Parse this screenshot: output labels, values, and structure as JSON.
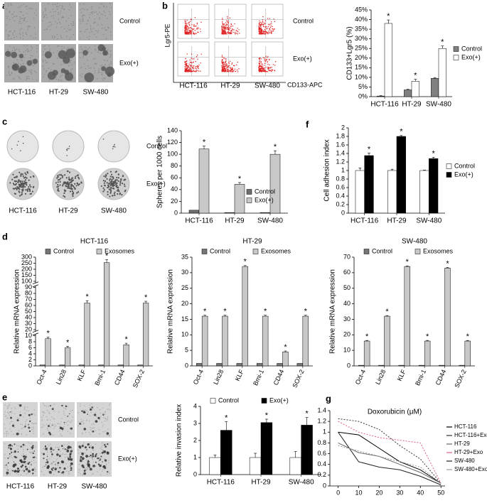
{
  "figure": {
    "a": {
      "letter": "a",
      "rows": [
        "Control",
        "Exo(+)"
      ],
      "columns": [
        "HCT-116",
        "HT-29",
        "SW-480"
      ]
    },
    "b": {
      "letter": "b",
      "rows": [
        "Control",
        "Exo(+)"
      ],
      "columns": [
        "HCT-116",
        "HT-29",
        "SW-480"
      ],
      "y_label": "Lgr5-PE",
      "x_label": "CD133-APC"
    },
    "c": {
      "letter": "c",
      "rows": [
        "Control",
        "Exo(+)"
      ],
      "columns": [
        "HCT-116",
        "HT-29",
        "SW-480"
      ]
    },
    "d": {
      "letter": "d"
    },
    "e": {
      "letter": "e",
      "rows": [
        "Control",
        "Exo(+)"
      ],
      "columns": [
        "HCT-116",
        "HT-29",
        "SW-480"
      ]
    },
    "f": {
      "letter": "f"
    },
    "g": {
      "letter": "g"
    }
  },
  "chart_data": [
    {
      "type": "bar",
      "ylabel": "CD133+Lgr5 (%)",
      "categories": [
        "HCT-116",
        "HT-29",
        "SW-480"
      ],
      "series": [
        {
          "name": "Control",
          "color": "#808080",
          "values": [
            0.3,
            3.5,
            9.5
          ],
          "errors": [
            0.2,
            0.3,
            0.4
          ]
        },
        {
          "name": "Exo(+)",
          "color": "#ffffff",
          "values": [
            38,
            8,
            25
          ],
          "errors": [
            1.8,
            1,
            1.3
          ],
          "stars": [
            "*",
            "*",
            "*"
          ]
        }
      ],
      "ylim": [
        0,
        45
      ],
      "yticks": [
        {
          "value": 0,
          "label": "0%"
        },
        {
          "value": 5,
          "label": "5%"
        },
        {
          "value": 10,
          "label": "10%"
        },
        {
          "value": 15,
          "label": "15%"
        },
        {
          "value": 20,
          "label": "20%"
        },
        {
          "value": 25,
          "label": "25%"
        },
        {
          "value": 30,
          "label": "30%"
        },
        {
          "value": 35,
          "label": "35%"
        },
        {
          "value": 40,
          "label": "40%"
        },
        {
          "value": 45,
          "label": "45%"
        }
      ],
      "legend": "right"
    },
    {
      "type": "bar",
      "ylabel": "Spheres per 1000 cells",
      "categories": [
        "HCT-116",
        "HT-29",
        "SW-480"
      ],
      "series": [
        {
          "name": "Control",
          "color": "#6e6e6e",
          "values": [
            5,
            1,
            1
          ]
        },
        {
          "name": "Exo(+)",
          "color": "#c8c8c8",
          "values": [
            109,
            49,
            100
          ],
          "errors": [
            5,
            3,
            6
          ],
          "stars": [
            "*",
            "*",
            "*"
          ]
        }
      ],
      "ylim": [
        0,
        140
      ],
      "yticks": [
        0,
        20,
        40,
        60,
        80,
        100,
        120,
        140
      ],
      "legend": "lower right"
    },
    {
      "type": "bar",
      "ylabel": "Cell adhesion index",
      "categories": [
        "HCT-116",
        "HT-29",
        "SW-480"
      ],
      "series": [
        {
          "name": "Control",
          "color": "#ffffff",
          "values": [
            1,
            1,
            1
          ],
          "errors": [
            0.06,
            0.03,
            0.01
          ]
        },
        {
          "name": "Exo(+)",
          "color": "#000000",
          "values": [
            1.35,
            1.8,
            1.28
          ],
          "errors": [
            0.06,
            0.02,
            0.03
          ],
          "stars": [
            "*",
            "*",
            "*"
          ]
        }
      ],
      "ylim": [
        0,
        2
      ],
      "yticks": [
        0,
        0.2,
        0.4,
        0.6,
        0.8,
        1,
        1.2,
        1.4,
        1.6,
        1.8,
        2
      ],
      "legend": "right"
    },
    {
      "type": "bar",
      "title": "HCT-116",
      "ylabel": "Relative mRNA expression",
      "categories": [
        "Oct-4",
        "Lin28",
        "KLF",
        "Bmi-1",
        "CD44",
        "SOX-2"
      ],
      "series": [
        {
          "name": "Control",
          "color": "#777777",
          "values": [
            0.3,
            0.3,
            0.3,
            0.3,
            0.3,
            0.3
          ]
        },
        {
          "name": "Exosomes",
          "color": "#c8c8c8",
          "values": [
            9,
            6,
            64,
            255,
            7,
            64
          ],
          "errors": [
            0.5,
            0.5,
            4,
            25,
            0.5,
            3
          ],
          "stars": [
            "*",
            "*",
            "*",
            "*",
            "*",
            "*"
          ]
        }
      ],
      "ylim": [
        0,
        300
      ],
      "yticks": [
        0,
        2,
        4,
        6,
        8,
        10,
        20,
        30,
        40,
        50,
        60,
        70,
        80,
        90,
        100,
        150,
        200,
        250,
        300
      ],
      "y_segments": [
        [
          0,
          10
        ],
        [
          20,
          90
        ],
        [
          100,
          300
        ]
      ],
      "legend": "upper center"
    },
    {
      "type": "bar",
      "title": "HT-29",
      "ylabel": "Relative mRNA expression",
      "categories": [
        "Oct-4",
        "Lin28",
        "KLF",
        "Bmi-1",
        "CD44",
        "SOX-2"
      ],
      "series": [
        {
          "name": "Control",
          "color": "#777777",
          "values": [
            0.8,
            0.8,
            0.8,
            0.8,
            0.8,
            0.8
          ]
        },
        {
          "name": "Exosomes",
          "color": "#c8c8c8",
          "values": [
            16,
            16,
            32,
            16,
            4.5,
            16
          ],
          "errors": [
            0.3,
            0.3,
            0.3,
            0.3,
            0.3,
            0.3
          ],
          "stars": [
            "*",
            "*",
            "*",
            "*",
            "*",
            "*"
          ]
        }
      ],
      "ylim": [
        0,
        35
      ],
      "yticks": [
        0,
        5,
        10,
        15,
        20,
        25,
        30,
        35
      ],
      "legend": "upper center"
    },
    {
      "type": "bar",
      "title": "SW-480",
      "ylabel": "Relative mRNA expression",
      "categories": [
        "Oct-4",
        "Lin28",
        "KLF",
        "Bmi-1",
        "CD44",
        "SOX-2"
      ],
      "series": [
        {
          "name": "Control",
          "color": "#777777",
          "values": [
            0.4,
            0.4,
            0.4,
            0.4,
            0.4,
            0.4
          ]
        },
        {
          "name": "Exosomes",
          "color": "#c8c8c8",
          "values": [
            16,
            32,
            64,
            16,
            63,
            16
          ],
          "errors": [
            0.4,
            0.4,
            0.4,
            0.4,
            0.4,
            0.4
          ],
          "stars": [
            "*",
            "*",
            "*",
            "*",
            "*",
            "*"
          ]
        }
      ],
      "ylim": [
        0,
        70
      ],
      "yticks": [
        0,
        10,
        20,
        30,
        40,
        50,
        60,
        70
      ],
      "legend": "upper center"
    },
    {
      "type": "bar",
      "ylabel": "Relative invasion index",
      "categories": [
        "HCT-116",
        "HT-29",
        "SW-480"
      ],
      "series": [
        {
          "name": "Control",
          "color": "#ffffff",
          "values": [
            1,
            1,
            1
          ],
          "errors": [
            0.15,
            0.25,
            0.35
          ]
        },
        {
          "name": "Exo(+)",
          "color": "#000000",
          "values": [
            2.6,
            3.05,
            2.9
          ],
          "errors": [
            0.5,
            0.2,
            0.45
          ],
          "stars": [
            "*",
            "*",
            "*"
          ]
        }
      ],
      "ylim": [
        0,
        4
      ],
      "yticks": [
        0,
        1,
        2,
        3,
        4
      ],
      "legend": "upper center"
    },
    {
      "type": "line",
      "title": "Doxorubicin (μM)",
      "ylabel": "Cell viability",
      "x": [
        0,
        10,
        20,
        30,
        40,
        50
      ],
      "series": [
        {
          "name": "HCT-116",
          "color": "#000000",
          "dashed": false,
          "values": [
            1.0,
            0.95,
            0.7,
            0.45,
            0.3,
            0.05
          ]
        },
        {
          "name": "HCT-116+Exo",
          "color": "#333333",
          "dashed": true,
          "values": [
            1.25,
            1.2,
            1.05,
            0.75,
            0.5,
            0.05
          ]
        },
        {
          "name": "HT-29",
          "color": "#666666",
          "dashed": false,
          "values": [
            0.8,
            0.62,
            0.55,
            0.4,
            0.25,
            0.05
          ]
        },
        {
          "name": "HT-29+Exo",
          "color": "#e0607a",
          "dashed": true,
          "values": [
            1.2,
            1.0,
            0.9,
            0.85,
            0.8,
            0.05
          ]
        },
        {
          "name": "SW-480",
          "color": "#222222",
          "dashed": false,
          "values": [
            1.0,
            0.45,
            0.35,
            0.3,
            0.18,
            0.02
          ]
        },
        {
          "name": "SW-480+Exo",
          "color": "#999999",
          "dashed": true,
          "values": [
            0.75,
            0.65,
            0.55,
            0.45,
            0.35,
            0.05
          ]
        }
      ],
      "xlim": [
        -4,
        52
      ],
      "xticks": [
        0,
        10,
        20,
        30,
        40,
        50
      ],
      "ylim": [
        0,
        1.4
      ],
      "yticks": [
        0,
        0.2,
        0.4,
        0.6,
        0.8,
        1,
        1.2,
        1.4
      ],
      "legend": "right"
    }
  ]
}
